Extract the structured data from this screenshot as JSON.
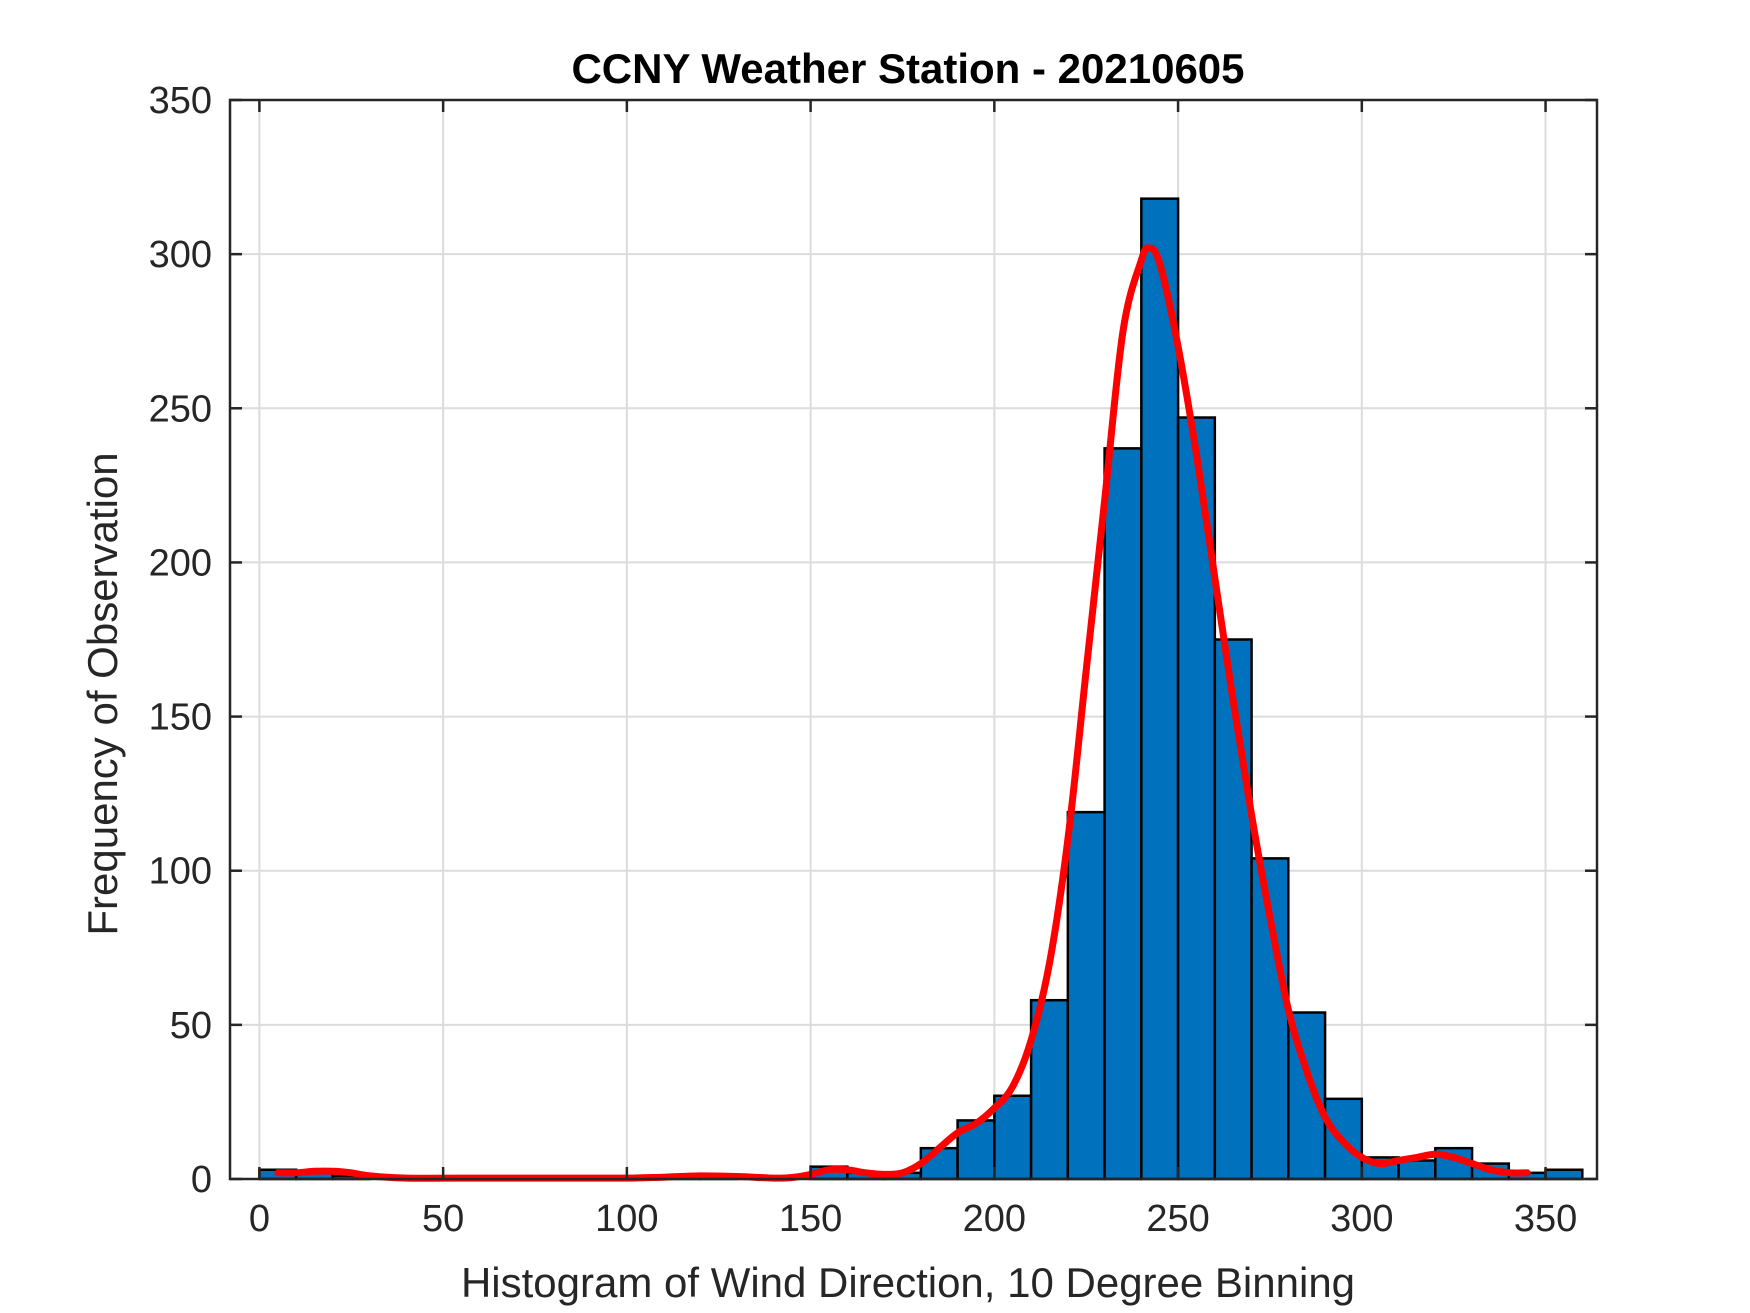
{
  "chart_data": {
    "type": "bar",
    "title": "CCNY Weather Station - 20210605",
    "xlabel": "Histogram of Wind Direction, 10 Degree Binning",
    "ylabel": "Frequency of Observation",
    "xlim": [
      -8,
      364
    ],
    "ylim": [
      0,
      350
    ],
    "xticks": [
      "0",
      "50",
      "100",
      "150",
      "200",
      "250",
      "300",
      "350"
    ],
    "yticks": [
      "0",
      "50",
      "100",
      "150",
      "200",
      "250",
      "300",
      "350"
    ],
    "grid": true,
    "bin_width": 10,
    "bins": [
      {
        "start": 0,
        "value": 3
      },
      {
        "start": 10,
        "value": 2
      },
      {
        "start": 20,
        "value": 1
      },
      {
        "start": 30,
        "value": 0
      },
      {
        "start": 40,
        "value": 0
      },
      {
        "start": 50,
        "value": 0
      },
      {
        "start": 60,
        "value": 0
      },
      {
        "start": 70,
        "value": 0
      },
      {
        "start": 80,
        "value": 0
      },
      {
        "start": 90,
        "value": 0
      },
      {
        "start": 100,
        "value": 0
      },
      {
        "start": 110,
        "value": 1
      },
      {
        "start": 120,
        "value": 1
      },
      {
        "start": 130,
        "value": 0
      },
      {
        "start": 140,
        "value": 0
      },
      {
        "start": 150,
        "value": 4
      },
      {
        "start": 160,
        "value": 2
      },
      {
        "start": 170,
        "value": 2
      },
      {
        "start": 180,
        "value": 10
      },
      {
        "start": 190,
        "value": 19
      },
      {
        "start": 200,
        "value": 27
      },
      {
        "start": 210,
        "value": 58
      },
      {
        "start": 220,
        "value": 119
      },
      {
        "start": 230,
        "value": 237
      },
      {
        "start": 240,
        "value": 318
      },
      {
        "start": 250,
        "value": 247
      },
      {
        "start": 260,
        "value": 175
      },
      {
        "start": 270,
        "value": 104
      },
      {
        "start": 280,
        "value": 54
      },
      {
        "start": 290,
        "value": 26
      },
      {
        "start": 300,
        "value": 7
      },
      {
        "start": 310,
        "value": 6
      },
      {
        "start": 320,
        "value": 10
      },
      {
        "start": 330,
        "value": 5
      },
      {
        "start": 340,
        "value": 2
      },
      {
        "start": 350,
        "value": 3
      }
    ],
    "fit_curve": {
      "x": [
        5,
        10,
        15,
        20,
        25,
        30,
        40,
        60,
        80,
        100,
        110,
        120,
        130,
        140,
        145,
        150,
        155,
        160,
        165,
        170,
        175,
        180,
        185,
        190,
        195,
        200,
        205,
        210,
        215,
        220,
        225,
        230,
        235,
        240,
        242,
        245,
        250,
        255,
        260,
        265,
        270,
        275,
        280,
        285,
        290,
        295,
        300,
        305,
        310,
        315,
        320,
        325,
        330,
        335,
        340,
        345
      ],
      "y": [
        2,
        2,
        2.5,
        2.5,
        2,
        1,
        0.3,
        0.3,
        0.3,
        0.3,
        0.6,
        1,
        0.8,
        0.3,
        0.5,
        1.5,
        3,
        3,
        2,
        1.5,
        2,
        5,
        10,
        15,
        18,
        23,
        30,
        45,
        70,
        110,
        165,
        220,
        275,
        298,
        302,
        297,
        270,
        235,
        195,
        155,
        118,
        85,
        55,
        35,
        20,
        12,
        7,
        5,
        6,
        7,
        8,
        7,
        5,
        3,
        2,
        2
      ]
    },
    "colors": {
      "bar_fill": "#0072bd",
      "bar_edge": "#000000",
      "curve": "#ff0000",
      "grid": "#dcdcdc",
      "axis": "#262626"
    }
  }
}
